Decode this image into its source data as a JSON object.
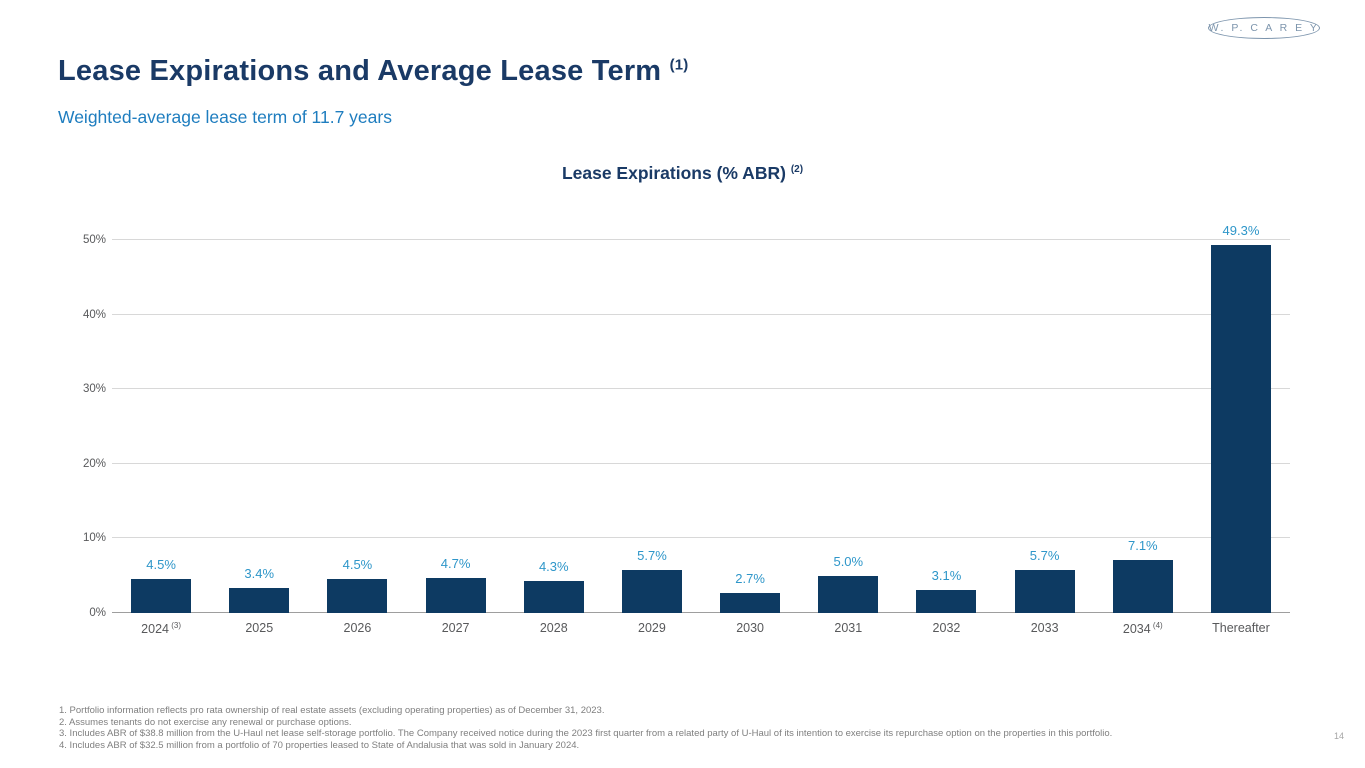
{
  "page": {
    "logo_text": "W. P.  C A R E Y",
    "title": "Lease Expirations and Average Lease Term",
    "title_sup": "(1)",
    "subtitle": "Weighted-average lease term of 11.7 years",
    "page_number": "14"
  },
  "chart_data": {
    "type": "bar",
    "title": "Lease Expirations (% ABR)",
    "title_sup": "(2)",
    "categories": [
      {
        "label": "2024",
        "sup": "(3)"
      },
      {
        "label": "2025",
        "sup": ""
      },
      {
        "label": "2026",
        "sup": ""
      },
      {
        "label": "2027",
        "sup": ""
      },
      {
        "label": "2028",
        "sup": ""
      },
      {
        "label": "2029",
        "sup": ""
      },
      {
        "label": "2030",
        "sup": ""
      },
      {
        "label": "2031",
        "sup": ""
      },
      {
        "label": "2032",
        "sup": ""
      },
      {
        "label": "2033",
        "sup": ""
      },
      {
        "label": "2034",
        "sup": "(4)"
      },
      {
        "label": "Thereafter",
        "sup": ""
      }
    ],
    "values": [
      4.5,
      3.4,
      4.5,
      4.7,
      4.3,
      5.7,
      2.7,
      5.0,
      3.1,
      5.7,
      7.1,
      49.3
    ],
    "value_labels": [
      "4.5%",
      "3.4%",
      "4.5%",
      "4.7%",
      "4.3%",
      "5.7%",
      "2.7%",
      "5.0%",
      "3.1%",
      "5.7%",
      "7.1%",
      "49.3%"
    ],
    "y_ticks": [
      "0%",
      "10%",
      "20%",
      "30%",
      "40%",
      "50%"
    ],
    "y_tick_values": [
      0,
      10,
      20,
      30,
      40,
      50
    ],
    "ylim": [
      0,
      50
    ],
    "grid": true,
    "legend": "none",
    "bar_color": "#0d3a62",
    "value_label_color": "#2e96c9"
  },
  "footnotes": [
    "1.  Portfolio information reflects pro rata ownership of real estate assets (excluding operating properties) as of December 31, 2023.",
    "2.  Assumes tenants do not exercise any renewal or purchase options.",
    "3.  Includes ABR of $38.8 million from the U-Haul net lease self-storage portfolio. The Company received notice during the 2023 first quarter from a related party of U-Haul of its intention to exercise its repurchase option on the properties in this portfolio.",
    "4.  Includes ABR of $32.5 million from a portfolio of 70 properties leased to State of Andalusia that was sold in January 2024."
  ]
}
